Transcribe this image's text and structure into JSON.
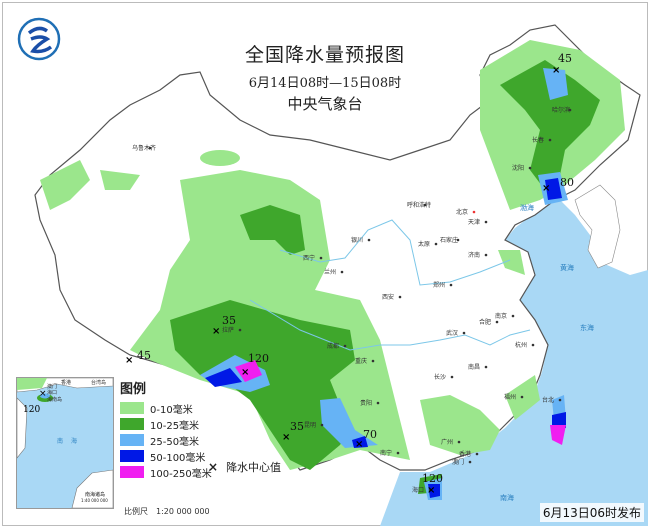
{
  "header": {
    "title": "全国降水量预报图",
    "period": "6月14日08时—15日08时",
    "agency": "中央气象台"
  },
  "colors": {
    "sea": "#a9d8f5",
    "light_green": "#9be68c",
    "green": "#3fa72c",
    "blue": "#66b3f5",
    "dark_blue": "#0018e6",
    "magenta": "#f01ef0"
  },
  "legend": {
    "title": "图例",
    "items": [
      {
        "label": "0-10毫米",
        "color": "#9be68c"
      },
      {
        "label": "10-25毫米",
        "color": "#3fa72c"
      },
      {
        "label": "25-50毫米",
        "color": "#66b3f5"
      },
      {
        "label": "50-100毫米",
        "color": "#0018e6"
      },
      {
        "label": "100-250毫米",
        "color": "#f01ef0"
      }
    ],
    "center_marker": {
      "symbol": "×",
      "label": "降水中心值"
    }
  },
  "centers": [
    {
      "value": "45",
      "place": "黑龙江北部"
    },
    {
      "value": "80",
      "place": "辽宁南部"
    },
    {
      "value": "35",
      "place": "西藏中部"
    },
    {
      "value": "45",
      "place": "西藏西南部"
    },
    {
      "value": "120",
      "place": "西藏东南部"
    },
    {
      "value": "35",
      "place": "云南西南部"
    },
    {
      "value": "70",
      "place": "云南南部"
    },
    {
      "value": "120",
      "place": "海南北部"
    }
  ],
  "cities": [
    "乌鲁木齐",
    "西宁",
    "兰州",
    "银川",
    "呼和浩特",
    "北京",
    "天津",
    "石家庄",
    "太原",
    "济南",
    "郑州",
    "西安",
    "合肥",
    "南京",
    "杭州",
    "武汉",
    "成都",
    "重庆",
    "长沙",
    "南昌",
    "福州",
    "贵阳",
    "昆明",
    "南宁",
    "广州",
    "香港",
    "澳门",
    "海口",
    "哈尔滨",
    "长春",
    "沈阳",
    "台北",
    "拉萨"
  ],
  "sea_labels": [
    "黄海",
    "东海",
    "南海",
    "渤海"
  ],
  "inset": {
    "labels": [
      "澳门",
      "香港",
      "台湾岛",
      "海口",
      "海南岛",
      "南海",
      "南海诸岛",
      "1:40 000 000"
    ],
    "center_value": "120"
  },
  "scale": "比例尺　1:20 000 000",
  "issued": "6月13日06时发布"
}
